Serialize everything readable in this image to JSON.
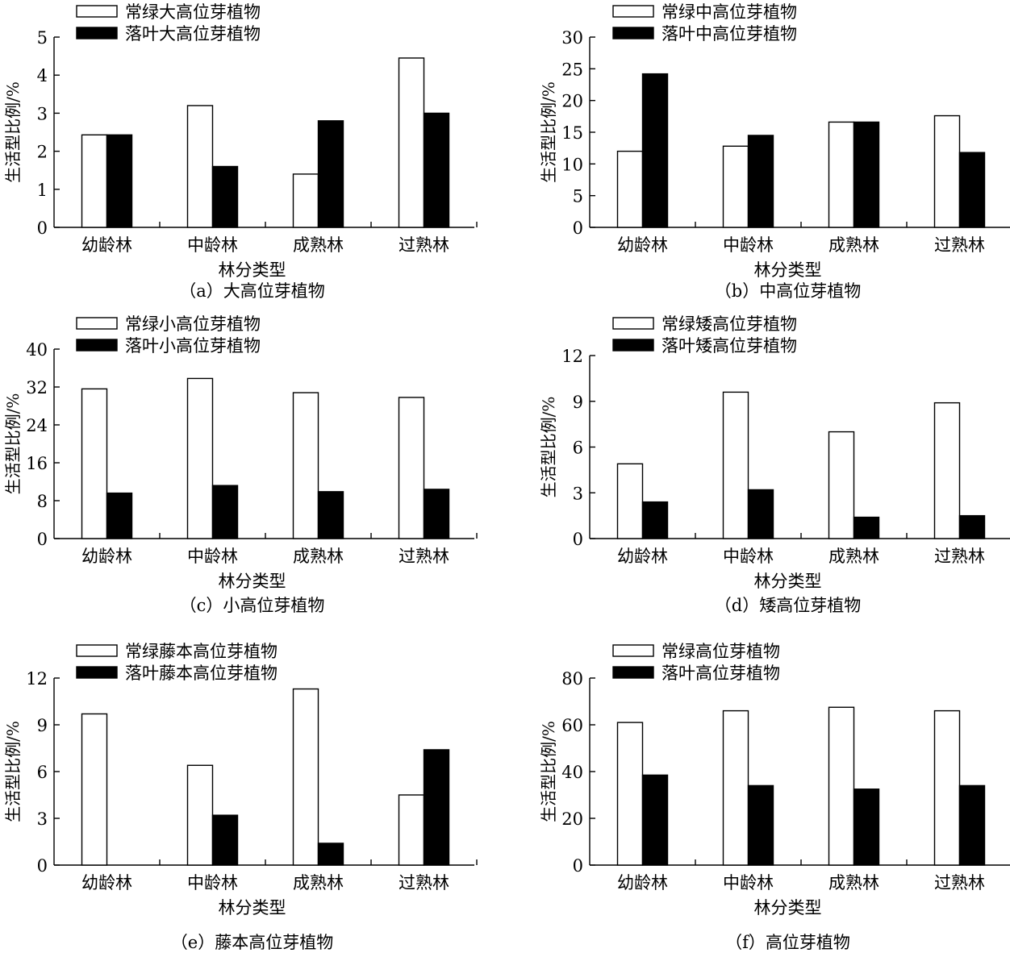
{
  "chart_data": [
    {
      "type": "bar",
      "panel_label": "（a）大高位芽植物",
      "xlabel": "林分类型",
      "ylabel": "生活型比例/%",
      "categories": [
        "幼龄林",
        "中龄林",
        "成熟林",
        "过熟林"
      ],
      "yticks": [
        "0",
        "1",
        "2",
        "3",
        "4",
        "5"
      ],
      "ylim": [
        0,
        5
      ],
      "series": [
        {
          "name": "常绿大高位芽植物",
          "fill": "#ffffff",
          "values": [
            2.43,
            3.2,
            1.4,
            4.45
          ]
        },
        {
          "name": "落叶大高位芽植物",
          "fill": "#000000",
          "values": [
            2.43,
            1.6,
            2.8,
            3.0
          ]
        }
      ]
    },
    {
      "type": "bar",
      "panel_label": "（b）中高位芽植物",
      "xlabel": "林分类型",
      "ylabel": "生活型比例/%",
      "categories": [
        "幼龄林",
        "中龄林",
        "成熟林",
        "过熟林"
      ],
      "yticks": [
        "0",
        "5",
        "10",
        "15",
        "20",
        "25",
        "30"
      ],
      "ylim": [
        0,
        30
      ],
      "series": [
        {
          "name": "常绿中高位芽植物",
          "fill": "#ffffff",
          "values": [
            12.0,
            12.8,
            16.6,
            17.6
          ]
        },
        {
          "name": "落叶中高位芽植物",
          "fill": "#000000",
          "values": [
            24.2,
            14.5,
            16.6,
            11.8
          ]
        }
      ]
    },
    {
      "type": "bar",
      "panel_label": "（c）小高位芽植物",
      "xlabel": "林分类型",
      "ylabel": "生活型比例/%",
      "categories": [
        "幼龄林",
        "中龄林",
        "成熟林",
        "过熟林"
      ],
      "yticks": [
        "0",
        "8",
        "16",
        "24",
        "32",
        "40"
      ],
      "ylim": [
        0,
        40
      ],
      "series": [
        {
          "name": "常绿小高位芽植物",
          "fill": "#ffffff",
          "values": [
            31.6,
            33.8,
            30.8,
            29.8
          ]
        },
        {
          "name": "落叶小高位芽植物",
          "fill": "#000000",
          "values": [
            9.6,
            11.2,
            9.9,
            10.4
          ]
        }
      ]
    },
    {
      "type": "bar",
      "panel_label": "（d）矮高位芽植物",
      "xlabel": "林分类型",
      "ylabel": "生活型比例/%",
      "categories": [
        "幼龄林",
        "中龄林",
        "成熟林",
        "过熟林"
      ],
      "yticks": [
        "0",
        "3",
        "6",
        "9",
        "12"
      ],
      "ylim": [
        0,
        12
      ],
      "series": [
        {
          "name": "常绿矮高位芽植物",
          "fill": "#ffffff",
          "values": [
            4.9,
            9.6,
            7.0,
            8.9
          ]
        },
        {
          "name": "落叶矮高位芽植物",
          "fill": "#000000",
          "values": [
            2.4,
            3.2,
            1.4,
            1.5
          ]
        }
      ]
    },
    {
      "type": "bar",
      "panel_label": "（e）藤本高位芽植物",
      "xlabel": "林分类型",
      "ylabel": "生活型比例/%",
      "categories": [
        "幼龄林",
        "中龄林",
        "成熟林",
        "过熟林"
      ],
      "yticks": [
        "0",
        "3",
        "6",
        "9",
        "12"
      ],
      "ylim": [
        0,
        12
      ],
      "series": [
        {
          "name": "常绿藤本高位芽植物",
          "fill": "#ffffff",
          "values": [
            9.7,
            6.4,
            11.3,
            4.5
          ]
        },
        {
          "name": "落叶藤本高位芽植物",
          "fill": "#000000",
          "values": [
            0,
            3.2,
            1.4,
            7.4
          ]
        }
      ]
    },
    {
      "type": "bar",
      "panel_label": "（f）高位芽植物",
      "xlabel": "林分类型",
      "ylabel": "生活型比例/%",
      "categories": [
        "幼龄林",
        "中龄林",
        "成熟林",
        "过熟林"
      ],
      "yticks": [
        "0",
        "20",
        "40",
        "60",
        "80"
      ],
      "ylim": [
        0,
        80
      ],
      "series": [
        {
          "name": "常绿高位芽植物",
          "fill": "#ffffff",
          "values": [
            61,
            66,
            67.5,
            66
          ]
        },
        {
          "name": "落叶高位芽植物",
          "fill": "#000000",
          "values": [
            38.5,
            34,
            32.5,
            34
          ]
        }
      ]
    }
  ]
}
